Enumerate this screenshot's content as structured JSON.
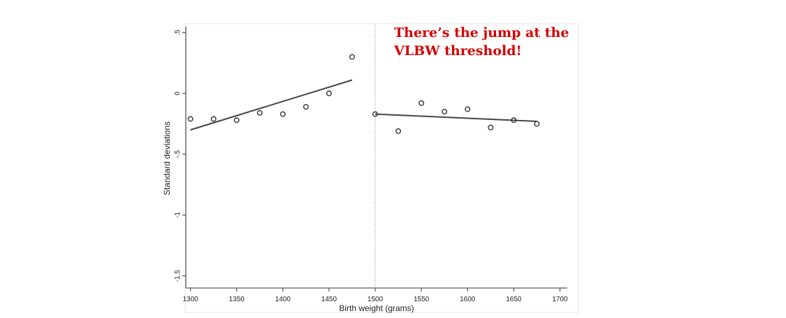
{
  "chart_data": {
    "type": "scatter",
    "title": "",
    "xlabel": "Birth weight (grams)",
    "ylabel": "Standard deviations",
    "xlim": [
      1295,
      1708
    ],
    "ylim": [
      -1.6,
      0.55
    ],
    "x_ticks": [
      1300,
      1350,
      1400,
      1450,
      1500,
      1550,
      1600,
      1650,
      1700
    ],
    "y_ticks": [
      0.5,
      0,
      -0.5,
      -1,
      -1.5
    ],
    "y_tick_labels": [
      ".5",
      "0",
      "-.5",
      "-1",
      "-1.5"
    ],
    "threshold": 1500,
    "grid": false,
    "series": [
      {
        "marker": "hollow-circle",
        "x": [
          1300,
          1325,
          1350,
          1375,
          1400,
          1425,
          1450,
          1475
        ],
        "y": [
          -0.21,
          -0.21,
          -0.22,
          -0.16,
          -0.17,
          -0.11,
          0.0,
          0.3
        ]
      },
      {
        "marker": "hollow-circle",
        "x": [
          1500,
          1525,
          1550,
          1575,
          1600,
          1625,
          1650,
          1675
        ],
        "y": [
          -0.17,
          -0.31,
          -0.08,
          -0.15,
          -0.13,
          -0.28,
          -0.22,
          -0.25
        ]
      }
    ],
    "fit_lines": [
      {
        "x": [
          1300,
          1475
        ],
        "y": [
          -0.3,
          0.11
        ]
      },
      {
        "x": [
          1500,
          1675
        ],
        "y": [
          -0.17,
          -0.23
        ]
      }
    ],
    "colors": {
      "points": "#333333",
      "fit": "#444444",
      "annotation": "#d40000"
    },
    "annotation": {
      "lines": [
        "There’s the jump at the",
        "VLBW threshold!"
      ]
    }
  }
}
